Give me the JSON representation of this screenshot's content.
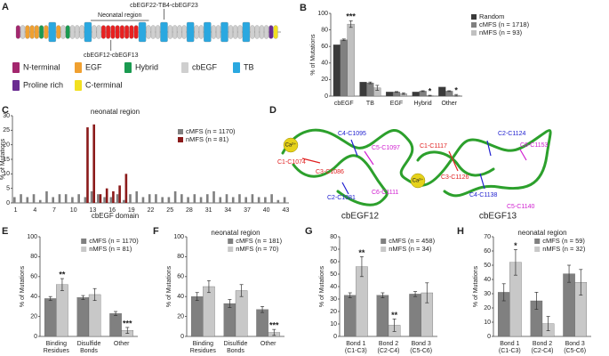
{
  "diagram": {
    "panel": "A",
    "labels": {
      "neonatal": "Neonatal region",
      "top": "cbEGF22-TB4-cbEGF23",
      "bottom": "cbEGF12-cbEGF13"
    },
    "legend": [
      {
        "label": "N-terminal",
        "color": "#a3276e"
      },
      {
        "label": "EGF",
        "color": "#f0a030"
      },
      {
        "label": "Hybrid",
        "color": "#1a9a50"
      },
      {
        "label": "cbEGF",
        "color": "#cfcfcf"
      },
      {
        "label": "TB",
        "color": "#2aa8e0"
      },
      {
        "label": "Proline rich",
        "color": "#6a2c91"
      },
      {
        "label": "C-terminal",
        "color": "#f2e020"
      }
    ]
  },
  "structure": {
    "panel": "D",
    "ion": "Ca²⁺",
    "domains": [
      "cbEGF12",
      "cbEGF13"
    ],
    "labels": [
      {
        "text": "C4-C1095",
        "color": "#2020d0"
      },
      {
        "text": "C5-C1097",
        "color": "#d020d0"
      },
      {
        "text": "C1-C1074",
        "color": "#e02020"
      },
      {
        "text": "C3-C1086",
        "color": "#e02020"
      },
      {
        "text": "C2-C1081",
        "color": "#2020d0"
      },
      {
        "text": "C6-C1111",
        "color": "#d020d0"
      },
      {
        "text": "C1-C1117",
        "color": "#e02020"
      },
      {
        "text": "C2-C1124",
        "color": "#2020d0"
      },
      {
        "text": "C6-C1153",
        "color": "#d020d0"
      },
      {
        "text": "C3-C1126",
        "color": "#e02020"
      },
      {
        "text": "C4-C1138",
        "color": "#2020d0"
      },
      {
        "text": "C5-C1140",
        "color": "#d020d0"
      }
    ]
  },
  "chart_data": [
    {
      "panel": "B",
      "type": "bar",
      "ylabel": "% of Mutations",
      "legend": "right",
      "categories": [
        "cbEGF",
        "TB",
        "EGF",
        "Hybrid",
        "Other"
      ],
      "series": [
        {
          "name": "Random",
          "color": "#3a3a3a",
          "values": [
            62,
            17,
            5,
            5,
            11
          ]
        },
        {
          "name": "cMFS (n = 1718)",
          "color": "#808080",
          "values": [
            68,
            16,
            5,
            6,
            6
          ],
          "errors": [
            1,
            1,
            0.5,
            0.5,
            0.5
          ]
        },
        {
          "name": "nMFS (n = 93)",
          "color": "#c0c0c0",
          "values": [
            87,
            10,
            3,
            0.5,
            1
          ],
          "errors": [
            4,
            3,
            1,
            0.5,
            1
          ]
        }
      ],
      "ylim": [
        0,
        100
      ],
      "yticks": [
        0,
        20,
        40,
        60,
        80,
        100
      ],
      "annotations": [
        {
          "text": "***",
          "category": "cbEGF"
        },
        {
          "text": "*",
          "category": "Hybrid"
        },
        {
          "text": "*",
          "category": "Other"
        }
      ]
    },
    {
      "panel": "C",
      "type": "bar",
      "title": "neonatal region",
      "xlabel": "cbEGF domain",
      "ylabel": "% of Mutations",
      "legend": "right",
      "categories": [
        "1",
        null,
        null,
        "4",
        null,
        null,
        "7",
        null,
        null,
        "10",
        null,
        null,
        "13",
        null,
        null,
        "16",
        null,
        null,
        "19",
        null,
        null,
        "22",
        null,
        null,
        "25",
        null,
        null,
        "28",
        null,
        null,
        "31",
        null,
        null,
        "34",
        null,
        null,
        "37",
        null,
        null,
        "40",
        null,
        null,
        "43"
      ],
      "series": [
        {
          "name": "cMFS (n = 1170)",
          "color": "#808080",
          "values": [
            2,
            3,
            2,
            3,
            1,
            4,
            2,
            3,
            3,
            2,
            3,
            2,
            4,
            3,
            2,
            2,
            3,
            1,
            3,
            4,
            2,
            3,
            3,
            2,
            2,
            4,
            3,
            2,
            3,
            2,
            3,
            4,
            2,
            3,
            2,
            3,
            2,
            3,
            2,
            2,
            3,
            1,
            2
          ]
        },
        {
          "name": "nMFS (n = 81)",
          "color": "#8b1a1a",
          "values": [
            0,
            0,
            0,
            0,
            0,
            0,
            0,
            0,
            0,
            0,
            0,
            26,
            27,
            3,
            5,
            4,
            6,
            10,
            0,
            0,
            0,
            0,
            0,
            0,
            0,
            0,
            0,
            0,
            0,
            0,
            0,
            0,
            0,
            0,
            0,
            0,
            0,
            0,
            0,
            0,
            0,
            0,
            0
          ]
        }
      ],
      "ylim": [
        0,
        30
      ],
      "yticks": [
        0,
        5,
        10,
        15,
        20,
        25,
        30
      ]
    },
    {
      "panel": "E",
      "type": "bar",
      "ylabel": "% of Mutations",
      "legend": "upper right",
      "categories": [
        "Binding Residues",
        "Disulfide Bonds",
        "Other"
      ],
      "series": [
        {
          "name": "cMFS (n = 1170)",
          "color": "#808080",
          "values": [
            38,
            39,
            23
          ],
          "errors": [
            2,
            2,
            2
          ]
        },
        {
          "name": "nMFS (n = 81)",
          "color": "#c8c8c8",
          "values": [
            52,
            42,
            6
          ],
          "errors": [
            6,
            6,
            3
          ]
        }
      ],
      "ylim": [
        0,
        100
      ],
      "yticks": [
        0,
        20,
        40,
        60,
        80,
        100
      ],
      "annotations": [
        {
          "text": "**",
          "category": "Binding Residues"
        },
        {
          "text": "***",
          "category": "Other"
        }
      ]
    },
    {
      "panel": "F",
      "type": "bar",
      "title": "neonatal region",
      "ylabel": "% of Mutations",
      "legend": "upper right",
      "categories": [
        "Binding Residues",
        "Disulfide Bonds",
        "Other"
      ],
      "series": [
        {
          "name": "cMFS (n = 181)",
          "color": "#808080",
          "values": [
            40,
            33,
            27
          ],
          "errors": [
            4,
            4,
            3
          ]
        },
        {
          "name": "nMFS (n = 70)",
          "color": "#c8c8c8",
          "values": [
            50,
            46,
            4
          ],
          "errors": [
            6,
            6,
            3
          ]
        }
      ],
      "ylim": [
        0,
        100
      ],
      "yticks": [
        0,
        20,
        40,
        60,
        80,
        100
      ],
      "annotations": [
        {
          "text": "***",
          "category": "Other"
        }
      ]
    },
    {
      "panel": "G",
      "type": "bar",
      "ylabel": "% of Mutations",
      "legend": "upper right",
      "categories": [
        "Bond 1 (C1-C3)",
        "Bond 2 (C2-C4)",
        "Bond 3 (C5-C6)"
      ],
      "series": [
        {
          "name": "cMFS (n = 458)",
          "color": "#808080",
          "values": [
            33,
            33,
            34
          ],
          "errors": [
            2,
            2,
            2
          ]
        },
        {
          "name": "nMFS (n = 34)",
          "color": "#c8c8c8",
          "values": [
            56,
            9,
            35
          ],
          "errors": [
            8,
            5,
            8
          ]
        }
      ],
      "ylim": [
        0,
        80
      ],
      "yticks": [
        0,
        10,
        20,
        30,
        40,
        50,
        60,
        70,
        80
      ],
      "annotations": [
        {
          "text": "**",
          "category": "Bond 1 (C1-C3)"
        },
        {
          "text": "**",
          "category": "Bond 2 (C2-C4)"
        }
      ]
    },
    {
      "panel": "H",
      "type": "bar",
      "title": "neonatal region",
      "ylabel": "% of Mutations",
      "legend": "upper right",
      "categories": [
        "Bond 1 (C1-C3)",
        "Bond 2 (C2-C4)",
        "Bond 3 (C5-C6)"
      ],
      "series": [
        {
          "name": "cMFS (n = 59)",
          "color": "#808080",
          "values": [
            31,
            25,
            44
          ],
          "errors": [
            6,
            6,
            6
          ]
        },
        {
          "name": "nMFS (n = 32)",
          "color": "#c8c8c8",
          "values": [
            52,
            9,
            38
          ],
          "errors": [
            9,
            5,
            9
          ]
        }
      ],
      "ylim": [
        0,
        70
      ],
      "yticks": [
        0,
        10,
        20,
        30,
        40,
        50,
        60,
        70
      ],
      "annotations": [
        {
          "text": "*",
          "category": "Bond 1 (C1-C3)"
        }
      ]
    }
  ]
}
